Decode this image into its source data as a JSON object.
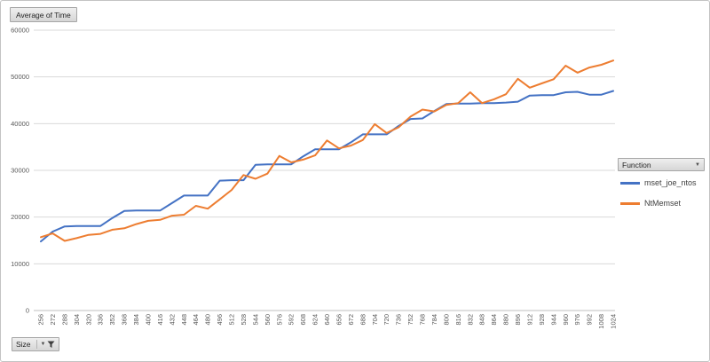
{
  "buttons": {
    "value_field": "Average of Time",
    "legend_field": "Function",
    "axis_field": "Size"
  },
  "legend": {
    "items": [
      {
        "label": "mset_joe_ntos",
        "color": "#4472C4"
      },
      {
        "label": "NtMemset",
        "color": "#ED7D31"
      }
    ]
  },
  "colors": {
    "series_blue": "#4472C4",
    "series_orange": "#ED7D31",
    "gridline": "#D9D9D9",
    "axis_line": "#BFBFBF",
    "tick_text": "#595959"
  },
  "chart_data": {
    "type": "line",
    "x": [
      256,
      272,
      288,
      304,
      320,
      336,
      352,
      368,
      384,
      400,
      416,
      432,
      448,
      464,
      480,
      496,
      512,
      528,
      544,
      560,
      576,
      592,
      608,
      624,
      640,
      656,
      672,
      688,
      704,
      720,
      736,
      752,
      768,
      784,
      800,
      816,
      832,
      848,
      864,
      880,
      896,
      912,
      928,
      944,
      960,
      976,
      992,
      1008,
      1024
    ],
    "series": [
      {
        "name": "mset_joe_ntos",
        "color": "#4472C4",
        "values": [
          14800,
          16900,
          18000,
          18100,
          18100,
          18100,
          19800,
          21300,
          21400,
          21400,
          21400,
          23000,
          24600,
          24600,
          24600,
          27800,
          27900,
          27900,
          31200,
          31300,
          31300,
          31300,
          33000,
          34500,
          34500,
          34500,
          36000,
          37700,
          37700,
          37700,
          39500,
          41000,
          41100,
          42700,
          44200,
          44300,
          44300,
          44400,
          44400,
          44500,
          44700,
          46000,
          46100,
          46100,
          46700,
          46800,
          46200,
          46200,
          47000
        ]
      },
      {
        "name": "NtMemset",
        "color": "#ED7D31",
        "values": [
          15700,
          16500,
          14900,
          15500,
          16200,
          16400,
          17300,
          17600,
          18500,
          19200,
          19400,
          20300,
          20500,
          22400,
          21800,
          23800,
          25800,
          29000,
          28200,
          29300,
          33100,
          31700,
          32300,
          33200,
          36400,
          34700,
          35300,
          36500,
          39900,
          38000,
          39200,
          41500,
          43000,
          42600,
          44000,
          44400,
          46700,
          44400,
          45200,
          46300,
          49600,
          47700,
          48600,
          49500,
          52400,
          50900,
          52000,
          52600,
          53500
        ]
      }
    ],
    "title": "Average of Time",
    "xlabel": "Size",
    "ylabel": "",
    "ylim": [
      0,
      60000
    ],
    "ytick_interval": 10000,
    "grid": true,
    "legend_position": "right"
  }
}
